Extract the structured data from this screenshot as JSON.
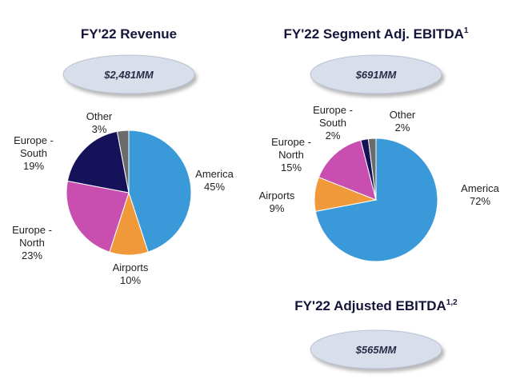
{
  "chart_data": [
    {
      "type": "pie",
      "title": "FY'22 Revenue",
      "total": "$2,481MM",
      "categories": [
        "America",
        "Airports",
        "Europe - North",
        "Europe - South",
        "Other"
      ],
      "values": [
        45,
        10,
        23,
        19,
        3
      ],
      "value_labels": [
        "45%",
        "10%",
        "23%",
        "19%",
        "3%"
      ],
      "colors": [
        "#3a9ad9",
        "#f0993a",
        "#c84fb0",
        "#16125a",
        "#6b6b6b"
      ]
    },
    {
      "type": "pie",
      "title": "FY'22 Segment Adj. EBITDA",
      "title_note": "1",
      "total": "$691MM",
      "categories": [
        "America",
        "Airports",
        "Europe - North",
        "Europe - South",
        "Other"
      ],
      "values": [
        72,
        9,
        15,
        2,
        2
      ],
      "value_labels": [
        "72%",
        "9%",
        "15%",
        "2%",
        "2%"
      ],
      "colors": [
        "#3a9ad9",
        "#f0993a",
        "#c84fb0",
        "#16125a",
        "#6b6b6b"
      ]
    }
  ],
  "adjusted_ebitda": {
    "title": "FY'22 Adjusted EBITDA",
    "title_note": "1,2",
    "total": "$565MM"
  }
}
